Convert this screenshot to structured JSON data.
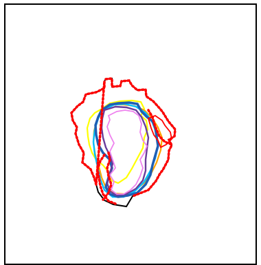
{
  "figure": {
    "background": "#ffffff",
    "frame_color": "#000000"
  },
  "outlines": [
    {
      "name": "black-outline",
      "color": "#000000",
      "style": "solid"
    },
    {
      "name": "yellow-outline",
      "color": "#ffff00",
      "style": "solid"
    },
    {
      "name": "orange-outline",
      "color": "#ffa500",
      "style": "solid"
    },
    {
      "name": "cyan-outline",
      "color": "#00bfff",
      "style": "solid"
    },
    {
      "name": "blue-outline",
      "color": "#1f5fb4",
      "style": "solid"
    },
    {
      "name": "purple-outline",
      "color": "#6a3d9a",
      "style": "solid"
    },
    {
      "name": "pink-outline",
      "color": "#ee82ee",
      "style": "solid"
    },
    {
      "name": "red-outline",
      "color": "#ff0000",
      "style": "solid"
    },
    {
      "name": "red-dotted-outline",
      "color": "#ff0000",
      "style": "dotted"
    }
  ]
}
